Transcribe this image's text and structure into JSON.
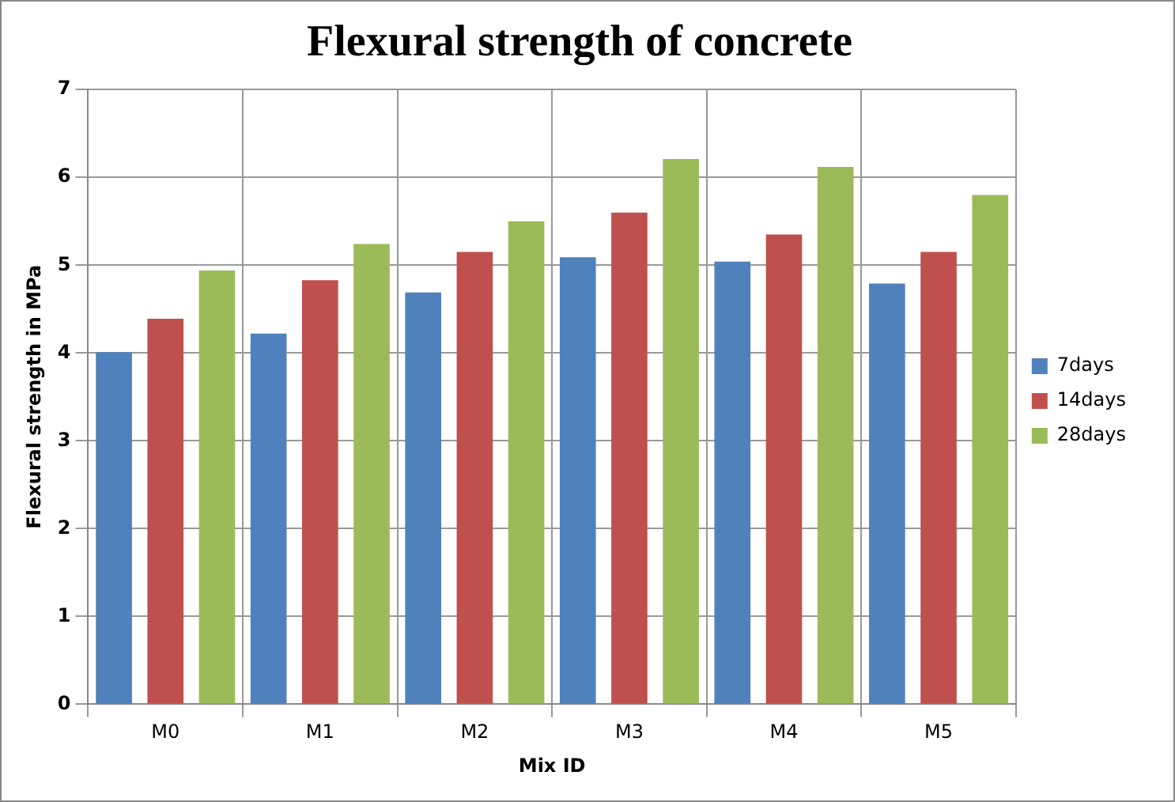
{
  "chart_data": {
    "type": "bar",
    "title": "Flexural strength of concrete",
    "xlabel": "Mix ID",
    "ylabel": "Flexural strength in MPa",
    "categories": [
      "M0",
      "M1",
      "M2",
      "M3",
      "M4",
      "M5"
    ],
    "series": [
      {
        "name": "7days",
        "color": "#4f81bd",
        "values": [
          4.01,
          4.22,
          4.69,
          5.09,
          5.04,
          4.79
        ]
      },
      {
        "name": "14days",
        "color": "#c0504d",
        "values": [
          4.39,
          4.83,
          5.15,
          5.6,
          5.35,
          5.15
        ]
      },
      {
        "name": "28days",
        "color": "#9bbb59",
        "values": [
          4.94,
          5.24,
          5.5,
          6.21,
          6.12,
          5.8
        ]
      }
    ],
    "ylim": [
      0,
      7
    ],
    "yticks": [
      0,
      1,
      2,
      3,
      4,
      5,
      6,
      7
    ],
    "grid": true,
    "legend": "right"
  }
}
